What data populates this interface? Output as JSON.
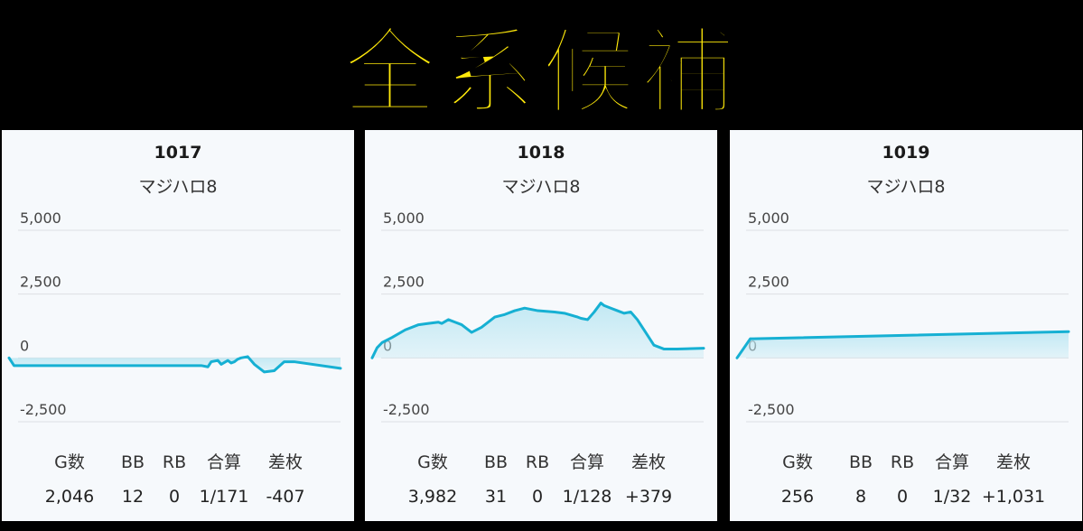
{
  "banner": {
    "title": "全系候補"
  },
  "cards": [
    {
      "number": "1017",
      "model": "マジハロ8",
      "stats": {
        "headers": [
          "G数",
          "BB",
          "RB",
          "合算",
          "差枚"
        ],
        "values": [
          "2,046",
          "12",
          "0",
          "1/171",
          "-407"
        ]
      }
    },
    {
      "number": "1018",
      "model": "マジハロ8",
      "stats": {
        "headers": [
          "G数",
          "BB",
          "RB",
          "合算",
          "差枚"
        ],
        "values": [
          "3,982",
          "31",
          "0",
          "1/128",
          "+379"
        ]
      }
    },
    {
      "number": "1019",
      "model": "マジハロ8",
      "stats": {
        "headers": [
          "G数",
          "BB",
          "RB",
          "合算",
          "差枚"
        ],
        "values": [
          "256",
          "8",
          "0",
          "1/32",
          "+1,031"
        ]
      }
    }
  ],
  "colors": {
    "line": "#16b0d3",
    "fill": "#bfe8f3",
    "grid": "#dcdfe3",
    "banner_text": "#ffe90a"
  },
  "chart_data": [
    {
      "type": "area",
      "title": "1017",
      "ylim": [
        -2500,
        5000
      ],
      "yticks": [
        5000,
        2500,
        0,
        -2500
      ],
      "ytick_labels": [
        "5,000",
        "2,500",
        "0",
        "-2,500"
      ],
      "grid": true,
      "series": [
        {
          "x": [
            0,
            0.015,
            0.03,
            0.3,
            0.58,
            0.6,
            0.61,
            0.63,
            0.64,
            0.66,
            0.67,
            0.68,
            0.69,
            0.7,
            0.72,
            0.74,
            0.77,
            0.8,
            0.83,
            0.86,
            1.0
          ],
          "y": [
            0,
            -300,
            -300,
            -300,
            -300,
            -350,
            -150,
            -100,
            -250,
            -100,
            -200,
            -150,
            -50,
            0,
            50,
            -250,
            -550,
            -500,
            -150,
            -150,
            -407
          ]
        }
      ]
    },
    {
      "type": "area",
      "title": "1018",
      "ylim": [
        -2500,
        5000
      ],
      "yticks": [
        5000,
        2500,
        0,
        -2500
      ],
      "ytick_labels": [
        "5,000",
        "2,500",
        "0",
        "-2,500"
      ],
      "grid": true,
      "series": [
        {
          "x": [
            0,
            0.015,
            0.03,
            0.06,
            0.1,
            0.14,
            0.17,
            0.2,
            0.21,
            0.23,
            0.25,
            0.27,
            0.3,
            0.33,
            0.37,
            0.4,
            0.43,
            0.46,
            0.5,
            0.55,
            0.58,
            0.62,
            0.63,
            0.65,
            0.67,
            0.69,
            0.7,
            0.72,
            0.74,
            0.76,
            0.78,
            0.8,
            0.82,
            0.85,
            0.88,
            0.92,
            1.0
          ],
          "y": [
            0,
            400,
            600,
            800,
            1100,
            1300,
            1350,
            1400,
            1350,
            1500,
            1400,
            1300,
            1000,
            1200,
            1600,
            1700,
            1850,
            1950,
            1850,
            1800,
            1750,
            1600,
            1550,
            1500,
            1800,
            2150,
            2050,
            1950,
            1850,
            1750,
            1800,
            1500,
            1100,
            500,
            350,
            350,
            379
          ]
        }
      ]
    },
    {
      "type": "area",
      "title": "1019",
      "ylim": [
        -2500,
        5000
      ],
      "yticks": [
        5000,
        2500,
        0,
        -2500
      ],
      "ytick_labels": [
        "5,000",
        "2,500",
        "0",
        "-2,500"
      ],
      "grid": true,
      "series": [
        {
          "x": [
            0,
            0.04,
            0.05,
            1.0
          ],
          "y": [
            0,
            750,
            750,
            1031
          ]
        }
      ]
    }
  ]
}
